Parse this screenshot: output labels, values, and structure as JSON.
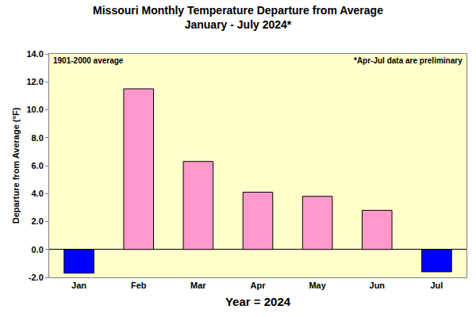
{
  "chart_data": {
    "type": "bar",
    "title": "Missouri Monthly Temperature Departure from Average",
    "subtitle": "January - July 2024*",
    "x_label": "Year = 2024",
    "y_label": "Departure from Average (°F)",
    "annotations": [
      "1901-2000 average",
      "*Apr-Jul data are preliminary"
    ],
    "categories": [
      "Jan",
      "Feb",
      "Mar",
      "Apr",
      "May",
      "Jun",
      "Jul"
    ],
    "values": [
      -1.7,
      11.5,
      6.3,
      4.1,
      3.8,
      2.8,
      -1.6
    ],
    "colors": [
      "#0000ff",
      "#ff99cc",
      "#ff99cc",
      "#ff99cc",
      "#ff99cc",
      "#ff99cc",
      "#0000ff"
    ],
    "ylim": [
      -2,
      14
    ],
    "yticks": [
      {
        "value": -2,
        "label": "-2.0"
      },
      {
        "value": 0,
        "label": "0.0"
      },
      {
        "value": 2,
        "label": "2.0"
      },
      {
        "value": 4,
        "label": "4.0"
      },
      {
        "value": 6,
        "label": "6.0"
      },
      {
        "value": 8,
        "label": "8.0"
      },
      {
        "value": 10,
        "label": "10.0"
      },
      {
        "value": 12,
        "label": "12.0"
      },
      {
        "value": 14,
        "label": "14.0"
      }
    ],
    "grid": false
  }
}
